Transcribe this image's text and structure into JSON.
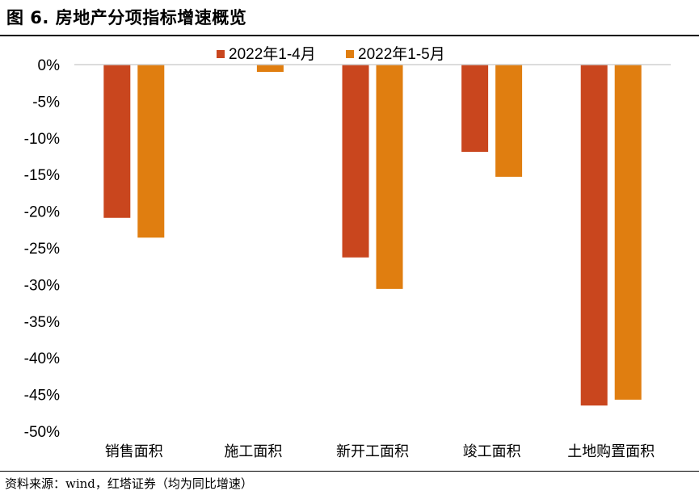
{
  "header": {
    "title": "图 6. 房地产分项指标增速概览"
  },
  "footer": {
    "source": "资料来源：wind，红塔证券（均为同比增速）"
  },
  "chart_data": {
    "type": "bar",
    "title": "房地产分项指标增速概览",
    "categories": [
      "销售面积",
      "施工面积",
      "新开工面积",
      "竣工面积",
      "土地购置面积"
    ],
    "series": [
      {
        "name": "2022年1-4月",
        "color": "#C9461E",
        "values": [
          -20.9,
          0,
          -26.3,
          -11.9,
          -46.5
        ]
      },
      {
        "name": "2022年1-5月",
        "color": "#E07E10",
        "values": [
          -23.6,
          -1.0,
          -30.6,
          -15.3,
          -45.7
        ]
      }
    ],
    "ylim": [
      -50,
      0
    ],
    "yticks": [
      0,
      -5,
      -10,
      -15,
      -20,
      -25,
      -30,
      -35,
      -40,
      -45,
      -50
    ],
    "ytick_labels": [
      "0%",
      "-5%",
      "-10%",
      "-15%",
      "-20%",
      "-25%",
      "-30%",
      "-35%",
      "-40%",
      "-45%",
      "-50%"
    ],
    "legend_position": "top-center",
    "grid": false,
    "xlabel": "",
    "ylabel": ""
  }
}
